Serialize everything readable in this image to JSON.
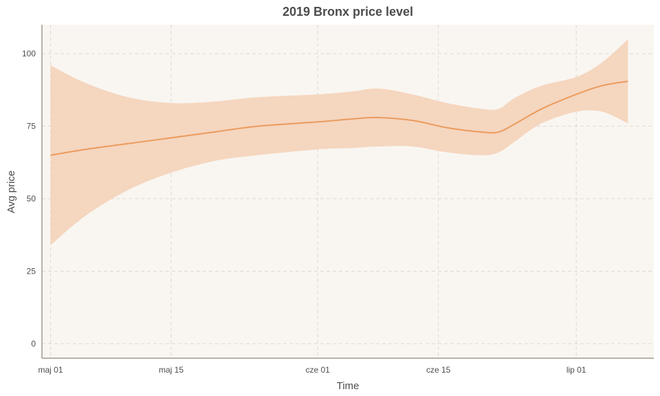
{
  "chart_data": {
    "type": "area",
    "title": "2019 Bronx price level",
    "xlabel": "Time",
    "ylabel": "Avg price",
    "x_ticks": [
      "maj 01",
      "maj 15",
      "cze 01",
      "cze 15",
      "lip 01"
    ],
    "x_tick_values": [
      "2019-05-01",
      "2019-05-15",
      "2019-06-01",
      "2019-06-15",
      "2019-07-01"
    ],
    "xlim": [
      "2019-04-30",
      "2019-07-10"
    ],
    "y_ticks": [
      0,
      25,
      50,
      75,
      100
    ],
    "ylim": [
      -5,
      110
    ],
    "grid": true,
    "colors": {
      "panel_background": "#f9f6f1",
      "line": "#eb9b5c",
      "band": "#f5d6bf"
    },
    "series": [
      {
        "x": [
          "2019-05-01",
          "2019-05-05",
          "2019-05-10",
          "2019-05-15",
          "2019-05-20",
          "2019-05-25",
          "2019-06-01",
          "2019-06-05",
          "2019-06-08",
          "2019-06-12",
          "2019-06-16",
          "2019-06-20",
          "2019-06-22",
          "2019-06-24",
          "2019-06-27",
          "2019-07-01",
          "2019-07-04",
          "2019-07-07"
        ],
        "y": [
          65,
          67,
          69,
          71,
          73,
          75,
          76.5,
          77.5,
          78,
          77,
          74.5,
          73,
          73,
          76,
          81,
          86,
          89,
          90.5
        ],
        "ymin": [
          34,
          44,
          53,
          59,
          63,
          65,
          67,
          67.5,
          68,
          68,
          66,
          65,
          66,
          70,
          76,
          80,
          80,
          76
        ],
        "ymax": [
          96,
          90,
          85,
          83,
          83.5,
          85,
          86,
          87,
          88,
          86,
          83,
          81,
          81,
          85,
          89,
          92,
          97,
          105
        ]
      }
    ]
  }
}
